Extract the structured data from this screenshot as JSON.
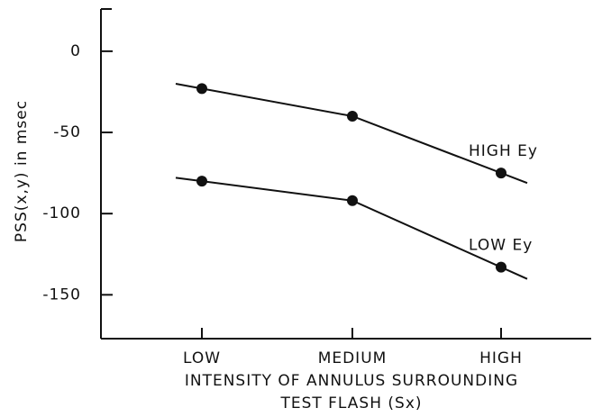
{
  "chart_data": {
    "type": "line",
    "y_label": "PSS(x,y) in msec",
    "x_label": [
      "INTENSITY OF ANNULUS SURROUNDING",
      "TEST FLASH (Sx)"
    ],
    "categories": [
      "LOW",
      "MEDIUM",
      "HIGH"
    ],
    "series": [
      {
        "name": "HIGH Ey",
        "color": "#111111",
        "values": [
          -23,
          -40,
          -75
        ]
      },
      {
        "name": "LOW Ey",
        "color": "#111111",
        "values": [
          -80,
          -92,
          -133
        ]
      }
    ],
    "ylim": [
      -177,
      26
    ],
    "yticks": [
      0,
      -50,
      -100,
      -150
    ],
    "grid": false
  }
}
